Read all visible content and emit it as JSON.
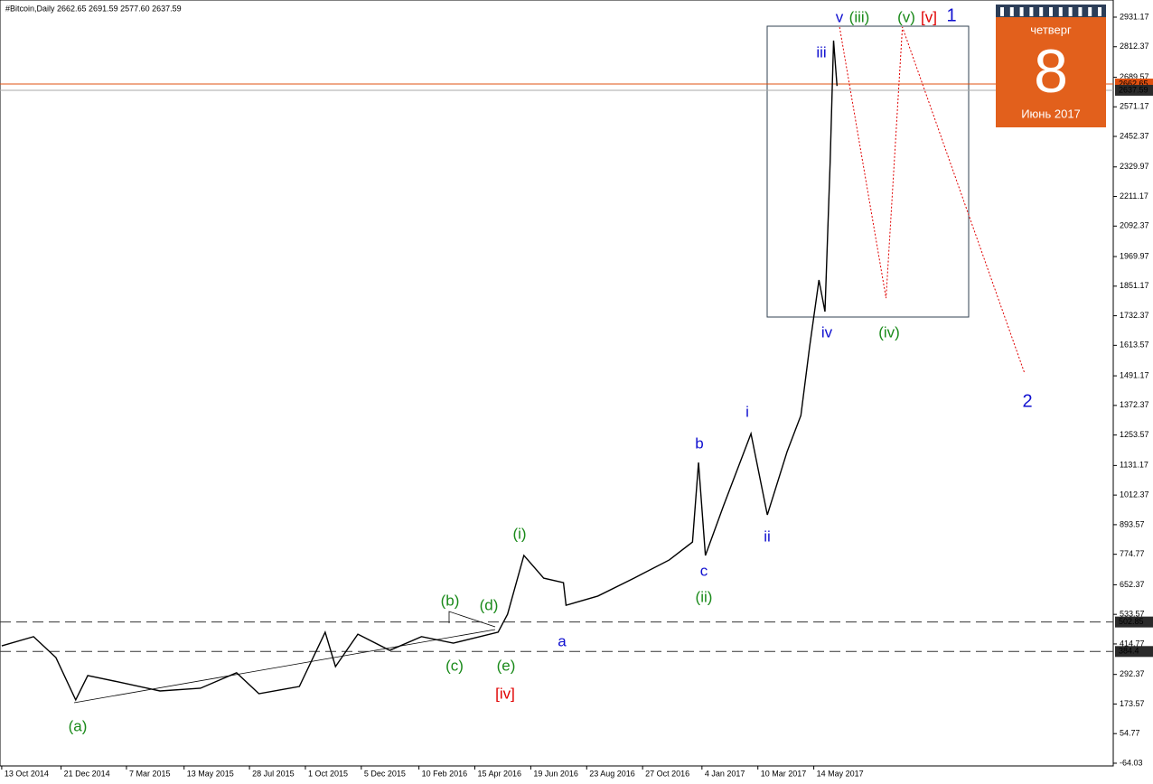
{
  "chart_data": {
    "type": "line",
    "header": "#Bitcoin,Daily  2662.65 2691.59 2577.60 2637.59",
    "xlim": [
      -2,
      1290
    ],
    "ylim": [
      -75,
      3000
    ],
    "xticks": [
      {
        "value": 0,
        "label": "13 Oct 2014"
      },
      {
        "value": 69,
        "label": "21 Dec 2014"
      },
      {
        "value": 145,
        "label": "7 Mar 2015"
      },
      {
        "value": 212,
        "label": "13 May 2015"
      },
      {
        "value": 288,
        "label": "28 Jul 2015"
      },
      {
        "value": 353,
        "label": "1 Oct 2015"
      },
      {
        "value": 418,
        "label": "5 Dec 2015"
      },
      {
        "value": 485,
        "label": "10 Feb 2016"
      },
      {
        "value": 550,
        "label": "15 Apr 2016"
      },
      {
        "value": 615,
        "label": "19 Jun 2016"
      },
      {
        "value": 680,
        "label": "23 Aug 2016"
      },
      {
        "value": 745,
        "label": "27 Oct 2016"
      },
      {
        "value": 814,
        "label": "4 Jan 2017"
      },
      {
        "value": 879,
        "label": "10 Mar 2017"
      },
      {
        "value": 944,
        "label": "14 May 2017"
      }
    ],
    "yticks": [
      2931.17,
      2812.37,
      2689.57,
      2571.17,
      2452.37,
      2329.97,
      2211.17,
      2092.37,
      1969.97,
      1851.17,
      1732.37,
      1613.57,
      1491.17,
      1372.37,
      1253.57,
      1131.17,
      1012.37,
      893.57,
      774.77,
      652.37,
      533.57,
      414.77,
      292.37,
      173.57,
      54.77,
      -64.03
    ],
    "levels": [
      502.85,
      384.4
    ],
    "price_lines": [
      2662.65,
      2637.59
    ],
    "series": [
      {
        "name": "#Bitcoin",
        "color": "#000000",
        "x": [
          0,
          37,
          63,
          86,
          100,
          136,
          184,
          231,
          273,
          299,
          346,
          376,
          388,
          414,
          451,
          488,
          525,
          577,
          588,
          607,
          630,
          653,
          656,
          693,
          735,
          776,
          803,
          810,
          818,
          839,
          871,
          890,
          913,
          929,
          939,
          950,
          957,
          963,
          967,
          971
        ],
        "values": [
          407,
          444,
          360,
          190,
          288,
          262,
          226,
          237,
          299,
          215,
          244,
          462,
          324,
          454,
          389,
          444,
          418,
          462,
          534,
          770,
          679,
          661,
          570,
          607,
          679,
          752,
          824,
          1143,
          770,
          969,
          1259,
          933,
          1187,
          1332,
          1604,
          1876,
          1749,
          2347,
          2837,
          2655
        ]
      },
      {
        "name": "projection",
        "color": "#e00000",
        "x": [
          974,
          1028,
          1047,
          1189
        ],
        "values": [
          2891,
          1803,
          2891,
          1502
        ]
      }
    ],
    "annotations": [
      "(a)",
      "(b)",
      "(c)",
      "(d)",
      "(e)",
      "[iv]",
      "(i)",
      "(ii)",
      "a",
      "b",
      "c",
      "i",
      "ii",
      "iii",
      "iv",
      "v",
      "(iii)",
      "(iv)",
      "(v)",
      "[v]",
      "1",
      "2"
    ],
    "calendar": {
      "weekday": "четверг",
      "day": "8",
      "month": "Июнь 2017"
    }
  }
}
